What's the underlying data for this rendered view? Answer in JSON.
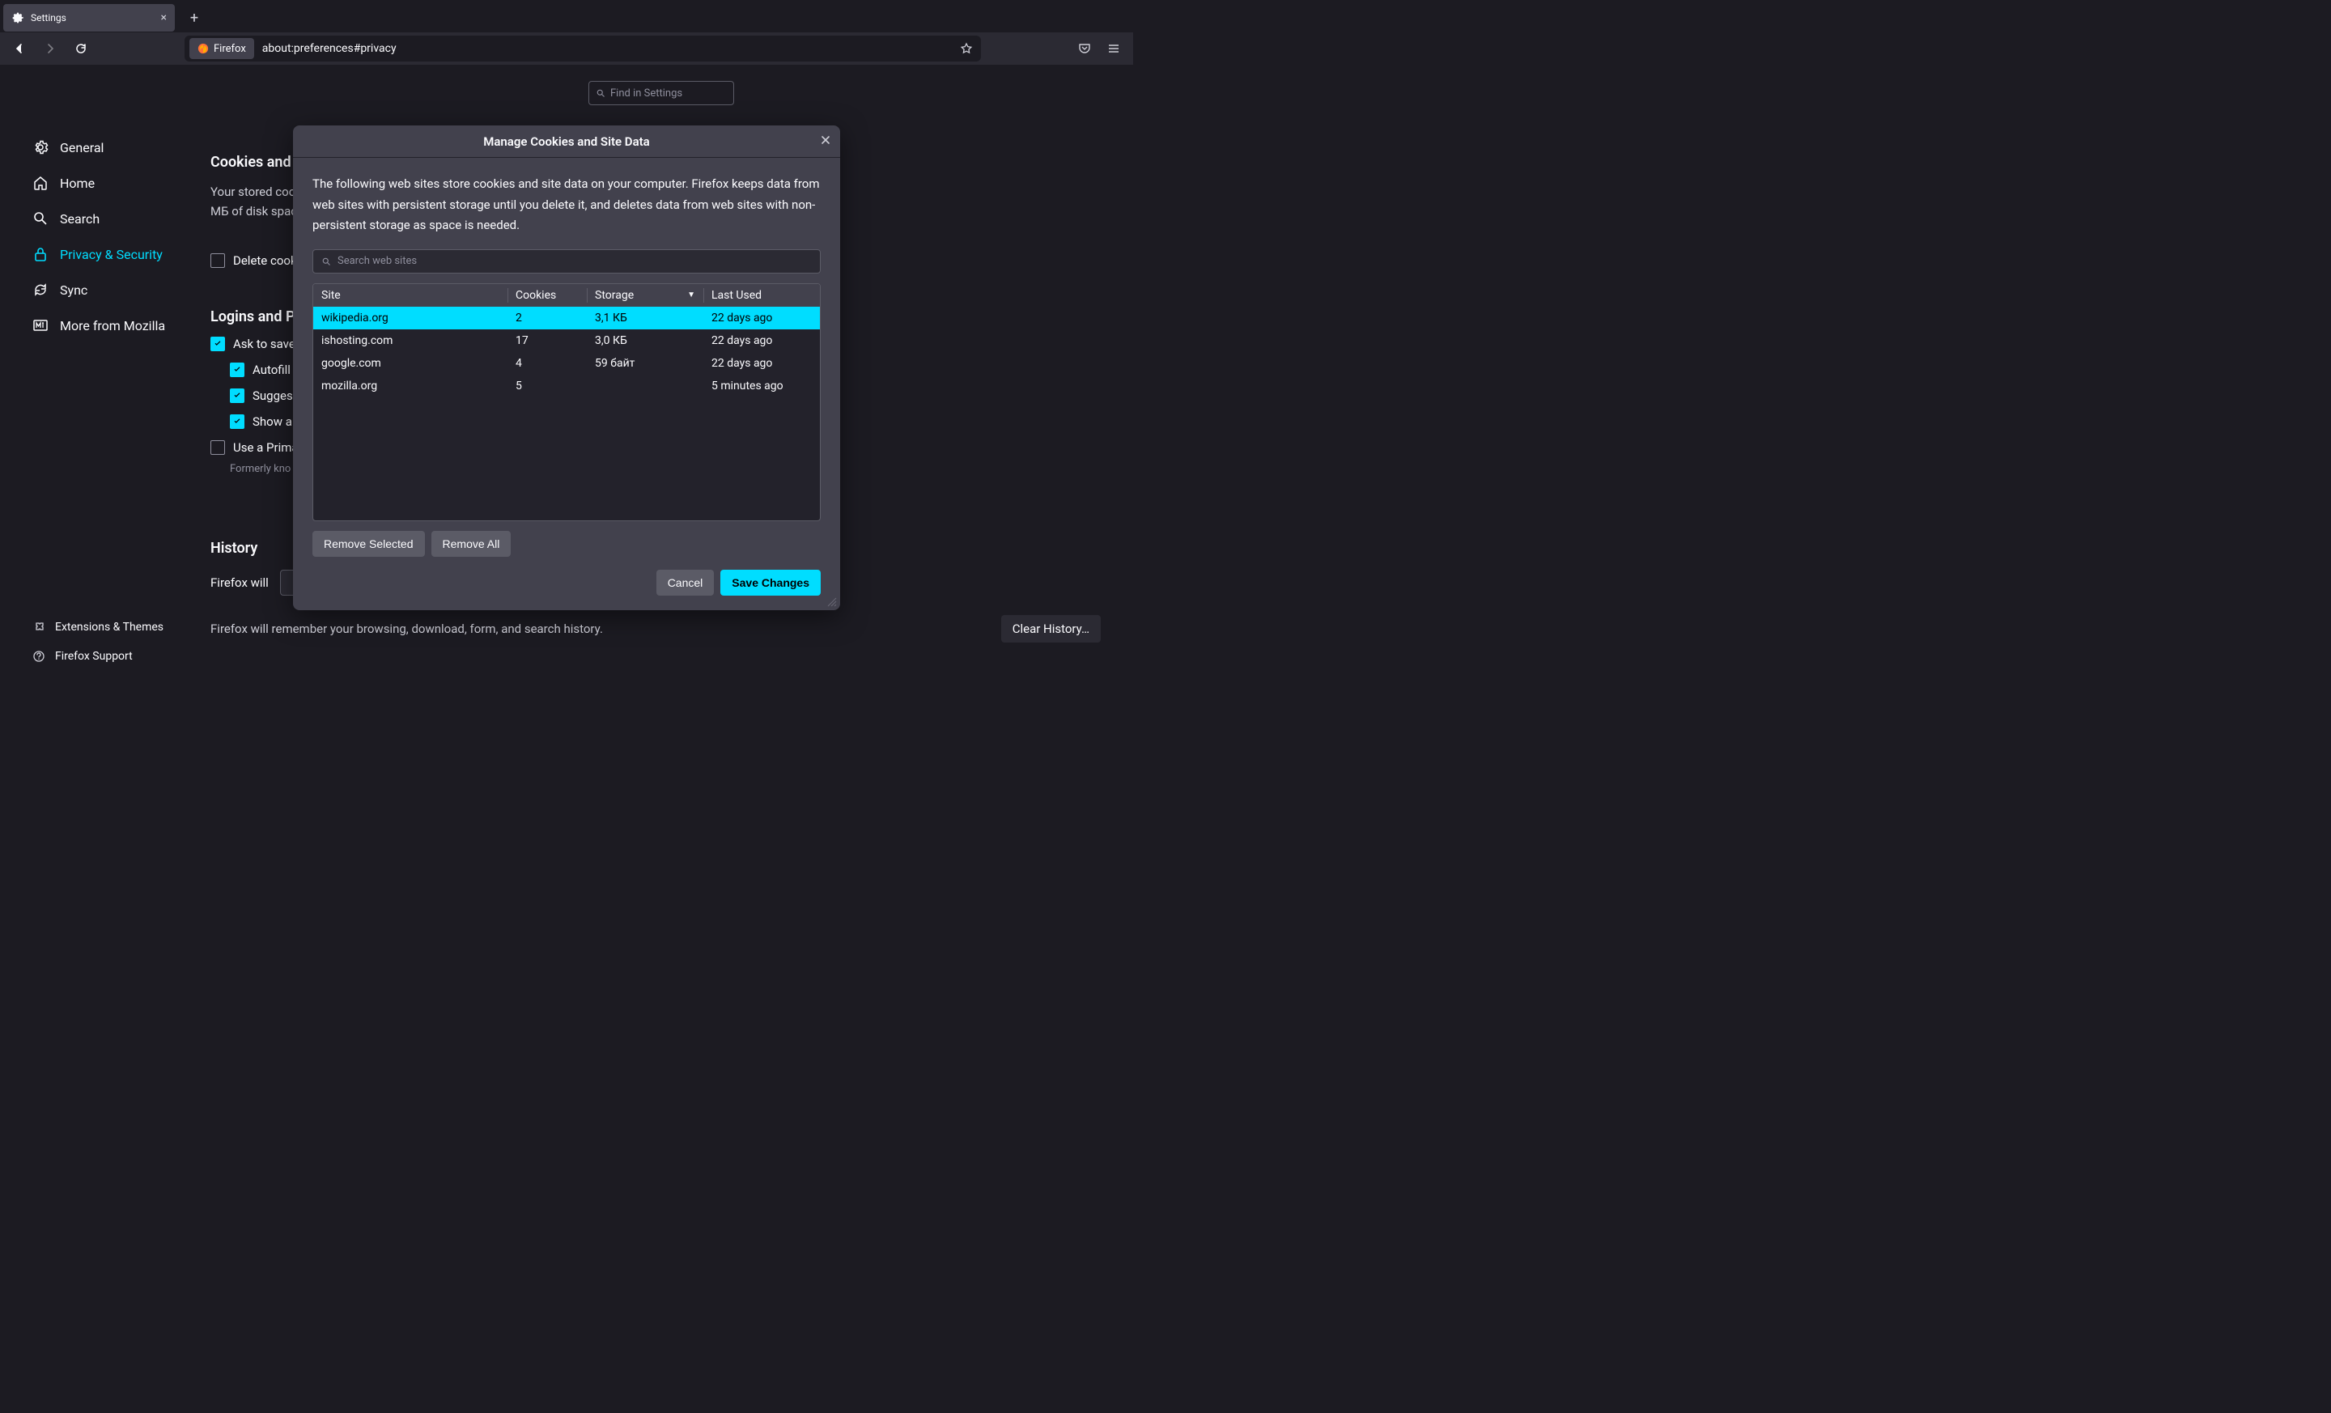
{
  "colors": {
    "accent": "#00ddff",
    "bg": "#1c1b22",
    "panel": "#2b2a33",
    "modal": "#42414d",
    "table_bg": "#23222b",
    "border": "#5b5b66",
    "text": "#fbfbfe",
    "muted": "#8f8f9d"
  },
  "tab": {
    "title": "Settings"
  },
  "urlbar": {
    "badge": "Firefox",
    "url": "about:preferences#privacy"
  },
  "find_settings": {
    "placeholder": "Find in Settings"
  },
  "sidebar": {
    "items": [
      {
        "label": "General"
      },
      {
        "label": "Home"
      },
      {
        "label": "Search"
      },
      {
        "label": "Privacy & Security"
      },
      {
        "label": "Sync"
      },
      {
        "label": "More from Mozilla"
      }
    ],
    "bottom": [
      {
        "label": "Extensions & Themes"
      },
      {
        "label": "Firefox Support"
      }
    ]
  },
  "cookies_section": {
    "heading": "Cookies and",
    "desc_line1": "Your stored coo",
    "desc_line2": "МБ of disk spac",
    "delete_chk": "Delete cook"
  },
  "logins_section": {
    "heading": "Logins and P",
    "ask_save": "Ask to save",
    "autofill": "Autofill l",
    "suggest": "Sugges",
    "show_alerts": "Show ale",
    "use_primary": "Use a Prima",
    "hint": "Formerly kno"
  },
  "history_section": {
    "heading": "History",
    "firefox_will": "Firefox will",
    "remember_text": "Firefox will remember your browsing, download, form, and search history.",
    "clear_button": "Clear History…"
  },
  "modal": {
    "title": "Manage Cookies and Site Data",
    "description": "The following web sites store cookies and site data on your computer. Firefox keeps data from web sites with persistent storage until you delete it, and deletes data from web sites with non-persistent storage as space is needed.",
    "search_placeholder": "Search web sites",
    "columns": {
      "site": "Site",
      "cookies": "Cookies",
      "storage": "Storage",
      "last_used": "Last Used"
    },
    "rows": [
      {
        "site": "wikipedia.org",
        "cookies": "2",
        "storage": "3,1 КБ",
        "last_used": "22 days ago",
        "selected": true
      },
      {
        "site": "ishosting.com",
        "cookies": "17",
        "storage": "3,0 КБ",
        "last_used": "22 days ago",
        "selected": false
      },
      {
        "site": "google.com",
        "cookies": "4",
        "storage": "59 байт",
        "last_used": "22 days ago",
        "selected": false
      },
      {
        "site": "mozilla.org",
        "cookies": "5",
        "storage": "",
        "last_used": "5 minutes ago",
        "selected": false
      }
    ],
    "remove_selected": "Remove Selected",
    "remove_all": "Remove All",
    "cancel": "Cancel",
    "save": "Save Changes"
  }
}
